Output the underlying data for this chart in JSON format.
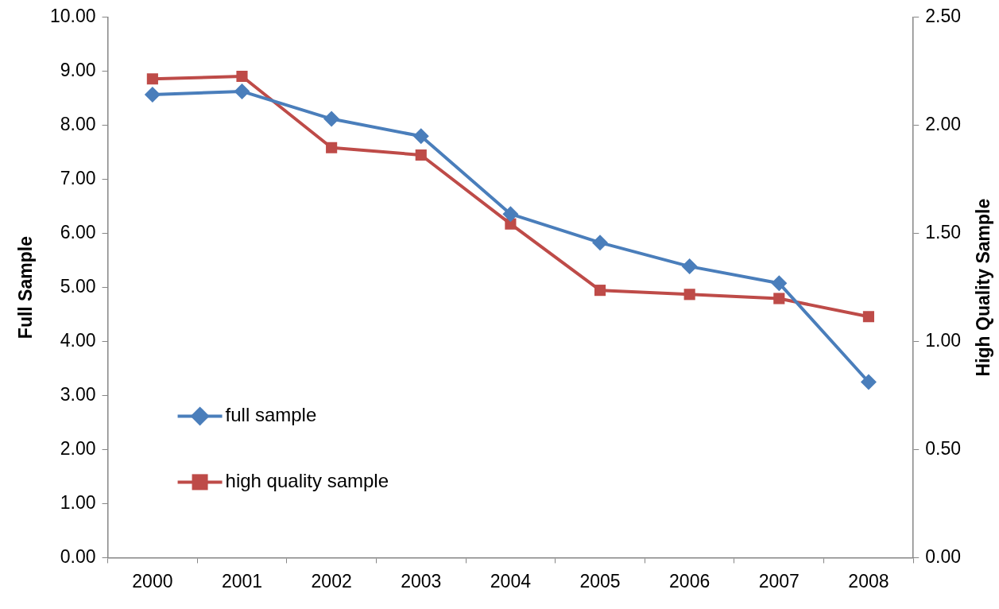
{
  "chart_data": {
    "type": "line",
    "categories": [
      "2000",
      "2001",
      "2002",
      "2003",
      "2004",
      "2005",
      "2006",
      "2007",
      "2008"
    ],
    "series": [
      {
        "name": "full sample",
        "color": "#4a7ebb",
        "marker": "diamond",
        "values": [
          8.57,
          8.63,
          8.12,
          7.8,
          6.36,
          5.83,
          5.39,
          5.08,
          3.25
        ]
      },
      {
        "name": "high quality sample",
        "color": "#be4b48",
        "marker": "square",
        "axis": "y2",
        "values": [
          2.215,
          2.227,
          1.897,
          1.863,
          1.544,
          1.237,
          1.218,
          1.199,
          1.115
        ]
      }
    ],
    "ylabel": "Full Sample",
    "y2label": "High Quality Sample",
    "ylim": [
      0,
      10
    ],
    "yticks": [
      {
        "value": 0,
        "label": "0.00"
      },
      {
        "value": 1,
        "label": "1.00"
      },
      {
        "value": 2,
        "label": "2.00"
      },
      {
        "value": 3,
        "label": "3.00"
      },
      {
        "value": 4,
        "label": "4.00"
      },
      {
        "value": 5,
        "label": "5.00"
      },
      {
        "value": 6,
        "label": "6.00"
      },
      {
        "value": 7,
        "label": "7.00"
      },
      {
        "value": 8,
        "label": "8.00"
      },
      {
        "value": 9,
        "label": "9.00"
      },
      {
        "value": 10,
        "label": "10.00"
      }
    ],
    "y2lim": [
      0,
      2.5
    ],
    "y2ticks": [
      {
        "value": 0,
        "label": "0.00"
      },
      {
        "value": 0.5,
        "label": "0.50"
      },
      {
        "value": 1,
        "label": "1.00"
      },
      {
        "value": 1.5,
        "label": "1.50"
      },
      {
        "value": 2,
        "label": "2.00"
      },
      {
        "value": 2.5,
        "label": "2.50"
      }
    ],
    "grid": false,
    "legend": "bottom left",
    "line_style": "solid"
  }
}
